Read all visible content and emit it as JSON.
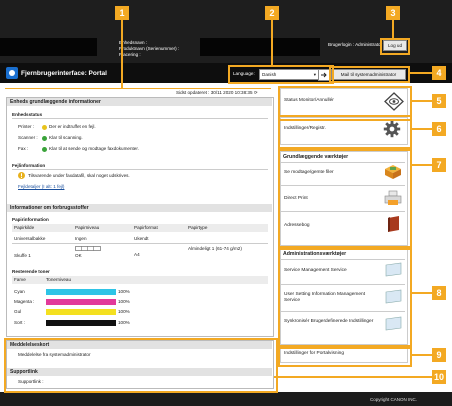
{
  "header": {
    "device_label_lines": [
      "Enhedsnavn :",
      "Produktnavn (Serienummer) :",
      "Placering :"
    ],
    "user_label": "Brugerlogin : Administrator",
    "logout_label": "Log ud",
    "app_title": "Fjernbrugerinterface: Portal",
    "language_label": "Language:",
    "language_value": "Danish",
    "mail_admin_label": "Mail til systemadministrator"
  },
  "main": {
    "last_updated": "Sidst opdateret : 30/11 2020 10:38:35",
    "device_basic_info_title": "Enheds grundlæggende informationer",
    "device_status_title": "Enhedsstatus",
    "status_rows": [
      {
        "label": "Printer :",
        "value": "Der er indtruffet en fejl.",
        "color": "#e8c31c"
      },
      {
        "label": "Scanner :",
        "value": "Klar til scanning.",
        "color": "#3aa33a"
      },
      {
        "label": "Fax :",
        "value": "Klar til at sende og modtage faxdokumenter.",
        "color": "#3aa33a"
      }
    ],
    "error_info_title": "Fejlinformation",
    "error_message": "Tilsvarende under faxdatafil, skal noget udskrives.",
    "error_link": "Fejldetaljer (I alt: 1 fejl)",
    "consumables_title": "Informationer om forbrugsstoffer",
    "paper_info_title": "Papirinformation",
    "paper_headers": [
      "Papirkilde",
      "Papirniveau",
      "Papirformat",
      "Papirtype"
    ],
    "paper_rows": [
      {
        "source": "Universalbakke",
        "level": "Ingen",
        "format": "Ukendt",
        "type": ""
      },
      {
        "source": "Skuffe 1",
        "level": "OK",
        "format": "A4",
        "type": "Almindeligt 1 (61-74 g/m2)"
      }
    ],
    "toner_title": "Resterende toner",
    "toner_headers": [
      "Farve",
      "Tonerniveau"
    ],
    "toner_rows": [
      {
        "name": "Cyan",
        "percent": "100%",
        "color": "#2ec4e6"
      },
      {
        "name": "Magenta :",
        "percent": "100%",
        "color": "#e23a9a"
      },
      {
        "name": "Gul",
        "percent": "100%",
        "color": "#f4e020"
      },
      {
        "name": "Sort :",
        "percent": "100%",
        "color": "#111111"
      }
    ],
    "messages_title": "Meddelelseskort",
    "messages_text": "Meddelelse fra systemadministrator",
    "support_title": "Supportlink",
    "support_text": "Supportlink :"
  },
  "right": {
    "status_monitor_label": "Status Monitor/Annullér",
    "settings_label": "Indstillinger/Registr.",
    "basic_tools_title": "Grundlæggende værktøjer",
    "basic_tools": [
      {
        "label": "Se modtage/gemte filer",
        "icon": "folder-icon"
      },
      {
        "label": "Direct Print",
        "icon": "printer-icon"
      },
      {
        "label": "Adressebog",
        "icon": "book-icon"
      }
    ],
    "admin_tools_title": "Administrationsværktøjer",
    "admin_tools": [
      {
        "label": "Service Management Service",
        "icon": "monitor-icon"
      },
      {
        "label": "User Setting Information Management Service",
        "icon": "monitor-icon"
      },
      {
        "label": "Synkronisér Brugerdefinerede Indstillinger",
        "icon": "monitor-icon"
      }
    ],
    "portal_display_label": "Indstillinger for Portalvisning"
  },
  "callouts": [
    "1",
    "2",
    "3",
    "4",
    "5",
    "6",
    "7",
    "8",
    "9",
    "10"
  ],
  "footer": {
    "copyright": "Copyright CANON INC."
  }
}
